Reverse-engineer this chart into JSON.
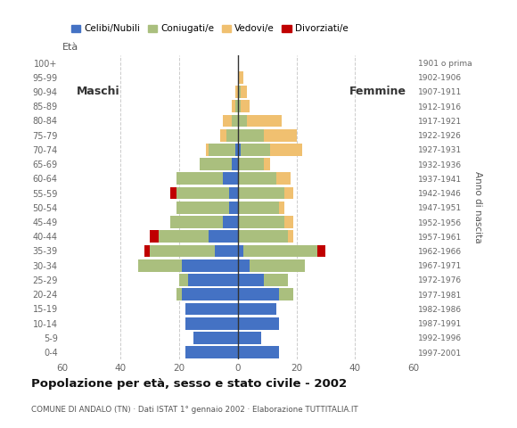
{
  "age_groups": [
    "0-4",
    "5-9",
    "10-14",
    "15-19",
    "20-24",
    "25-29",
    "30-34",
    "35-39",
    "40-44",
    "45-49",
    "50-54",
    "55-59",
    "60-64",
    "65-69",
    "70-74",
    "75-79",
    "80-84",
    "85-89",
    "90-94",
    "95-99",
    "100+"
  ],
  "birth_years": [
    "1997-2001",
    "1992-1996",
    "1987-1991",
    "1982-1986",
    "1977-1981",
    "1972-1976",
    "1967-1971",
    "1962-1966",
    "1957-1961",
    "1952-1956",
    "1947-1951",
    "1942-1946",
    "1937-1941",
    "1932-1936",
    "1927-1931",
    "1922-1926",
    "1917-1921",
    "1912-1916",
    "1907-1911",
    "1902-1906",
    "1901 o prima"
  ],
  "males": {
    "celibi": [
      18,
      15,
      18,
      18,
      19,
      17,
      19,
      8,
      10,
      5,
      3,
      3,
      5,
      2,
      1,
      0,
      0,
      0,
      0,
      0,
      0
    ],
    "coniugati": [
      0,
      0,
      0,
      0,
      2,
      3,
      15,
      22,
      17,
      18,
      18,
      18,
      16,
      11,
      9,
      4,
      2,
      1,
      0,
      0,
      0
    ],
    "vedovi": [
      0,
      0,
      0,
      0,
      0,
      0,
      0,
      0,
      0,
      0,
      0,
      0,
      0,
      0,
      1,
      2,
      3,
      1,
      1,
      0,
      0
    ],
    "divorziati": [
      0,
      0,
      0,
      0,
      0,
      0,
      0,
      2,
      3,
      0,
      0,
      2,
      0,
      0,
      0,
      0,
      0,
      0,
      0,
      0,
      0
    ]
  },
  "females": {
    "nubili": [
      14,
      8,
      14,
      13,
      14,
      9,
      4,
      2,
      0,
      0,
      0,
      0,
      0,
      0,
      1,
      0,
      0,
      0,
      0,
      0,
      0
    ],
    "coniugate": [
      0,
      0,
      0,
      0,
      5,
      8,
      19,
      25,
      17,
      16,
      14,
      16,
      13,
      9,
      10,
      9,
      3,
      1,
      1,
      0,
      0
    ],
    "vedove": [
      0,
      0,
      0,
      0,
      0,
      0,
      0,
      0,
      2,
      3,
      2,
      3,
      5,
      2,
      11,
      11,
      12,
      3,
      2,
      2,
      0
    ],
    "divorziate": [
      0,
      0,
      0,
      0,
      0,
      0,
      0,
      3,
      0,
      0,
      0,
      0,
      0,
      0,
      0,
      0,
      0,
      0,
      0,
      0,
      0
    ]
  },
  "colors": {
    "celibi_nubili": "#4472C4",
    "coniugati_e": "#AABF7E",
    "vedovi_e": "#F0C070",
    "divorziati_e": "#C00000"
  },
  "xlim": 60,
  "title": "Popolazione per età, sesso e stato civile - 2002",
  "subtitle": "COMUNE DI ANDALO (TN) · Dati ISTAT 1° gennaio 2002 · Elaborazione TUTTITALIA.IT",
  "maschi_label": "Maschi",
  "femmine_label": "Femmine",
  "eta_label": "Età",
  "anno_label": "Anno di nascita",
  "legend_labels": [
    "Celibi/Nubili",
    "Coniugati/e",
    "Vedovi/e",
    "Divorziati/e"
  ],
  "bg_color": "#FFFFFF",
  "grid_color": "#CCCCCC",
  "bar_height": 0.85
}
